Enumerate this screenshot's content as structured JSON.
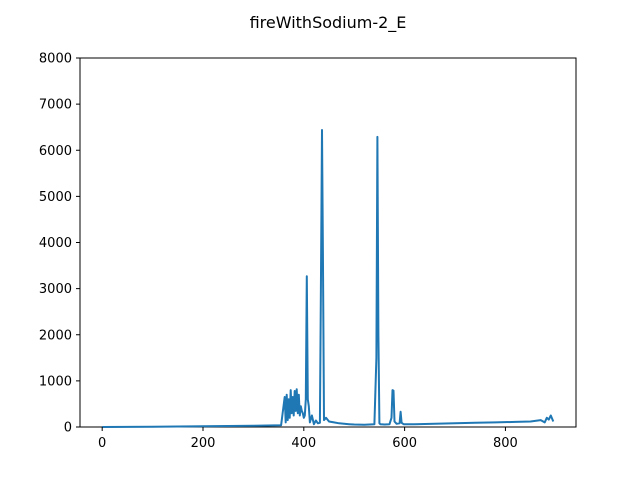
{
  "chart_data": {
    "type": "line",
    "title": "fireWithSodium-2_E",
    "xlabel": "",
    "ylabel": "",
    "xlim": [
      -44,
      940
    ],
    "ylim": [
      0,
      8000
    ],
    "xticks": [
      0,
      200,
      400,
      600,
      800
    ],
    "yticks": [
      0,
      1000,
      2000,
      3000,
      4000,
      5000,
      6000,
      7000,
      8000
    ],
    "grid": false,
    "color": "#1f77b4",
    "series": [
      {
        "name": "fireWithSodium-2_E",
        "x": [
          0,
          100,
          200,
          300,
          355,
          362,
          364,
          366,
          368,
          370,
          372,
          374,
          376,
          378,
          380,
          382,
          384,
          386,
          388,
          390,
          392,
          394,
          396,
          398,
          400,
          402,
          404,
          406,
          408,
          410,
          412,
          416,
          420,
          424,
          428,
          432,
          434,
          436,
          438,
          440,
          444,
          450,
          460,
          470,
          480,
          490,
          500,
          520,
          540,
          544,
          546,
          548,
          550,
          552,
          560,
          570,
          574,
          576,
          578,
          580,
          584,
          590,
          592,
          594,
          598,
          620,
          660,
          700,
          740,
          780,
          820,
          850,
          870,
          878,
          882,
          886,
          890,
          895
        ],
        "y": [
          0,
          5,
          15,
          25,
          40,
          650,
          100,
          700,
          150,
          600,
          200,
          800,
          300,
          650,
          250,
          780,
          350,
          820,
          300,
          700,
          250,
          450,
          350,
          300,
          200,
          250,
          600,
          3270,
          600,
          450,
          100,
          250,
          60,
          140,
          80,
          90,
          3000,
          6440,
          3500,
          150,
          200,
          120,
          100,
          80,
          70,
          60,
          55,
          50,
          60,
          1500,
          6290,
          2000,
          80,
          60,
          55,
          60,
          200,
          800,
          790,
          120,
          70,
          80,
          330,
          90,
          60,
          60,
          70,
          80,
          90,
          100,
          110,
          120,
          150,
          100,
          200,
          160,
          250,
          120
        ]
      }
    ]
  }
}
